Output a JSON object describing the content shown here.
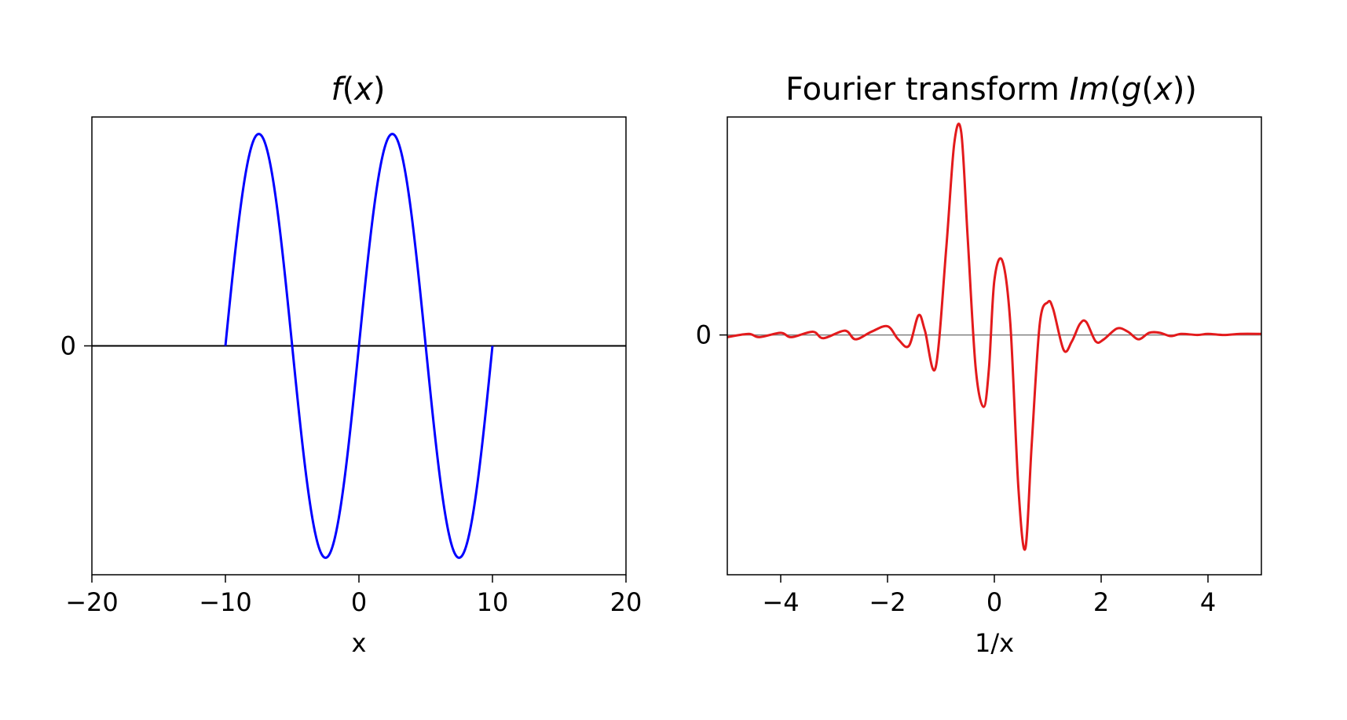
{
  "chart_data": [
    {
      "type": "line",
      "title": {
        "func": "f",
        "open": "(",
        "var": "x",
        "close": ")"
      },
      "xlabel": "x",
      "ylabel": "",
      "xlim": [
        -20,
        20
      ],
      "ylim": [
        -1.08,
        1.08
      ],
      "xticks": [
        -20,
        -10,
        0,
        10,
        20
      ],
      "xtick_labels": [
        "−20",
        "−10",
        "0",
        "10",
        "20"
      ],
      "yticks": [
        0
      ],
      "ytick_labels": [
        "0"
      ],
      "grid": false,
      "legend": "none",
      "zero_line": {
        "y": 0,
        "color": "#000000"
      },
      "series": [
        {
          "color": "#0000ff",
          "function": "sin(2*pi*x/10)",
          "x_range": [
            -10,
            10
          ],
          "x": [
            -10,
            -9,
            -8,
            -7.5,
            -7,
            -6,
            -5,
            -4,
            -3,
            -2.5,
            -2,
            -1,
            0,
            1,
            2,
            2.5,
            3,
            4,
            5,
            6,
            7,
            7.5,
            8,
            9,
            10
          ],
          "y": [
            0,
            0.59,
            0.95,
            1,
            0.95,
            0.59,
            0,
            -0.59,
            -0.95,
            -1,
            -0.95,
            -0.59,
            0,
            0.59,
            0.95,
            1,
            0.95,
            0.59,
            0,
            -0.59,
            -0.95,
            -1,
            -0.95,
            -0.59,
            0
          ]
        }
      ]
    },
    {
      "type": "line",
      "title": {
        "prefix": "Fourier transform ",
        "im": "Im",
        "open1": "(",
        "g": "g",
        "open2": "(",
        "var": "x",
        "close": "))"
      },
      "xlabel": "1/x",
      "ylabel": "",
      "xlim": [
        -5,
        5
      ],
      "ylim": [
        -1.1,
        1.0
      ],
      "xticks": [
        -4,
        -2,
        0,
        2,
        4
      ],
      "xtick_labels": [
        "−4",
        "−2",
        "0",
        "2",
        "4"
      ],
      "yticks": [
        0
      ],
      "ytick_labels": [
        "0"
      ],
      "grid": false,
      "legend": "none",
      "zero_line": {
        "y": 0,
        "color": "#808080"
      },
      "series": [
        {
          "color": "#e31a1c",
          "x": [
            -5.0,
            -4.6,
            -4.4,
            -4.0,
            -3.8,
            -3.4,
            -3.2,
            -2.8,
            -2.6,
            -2.3,
            -2.0,
            -1.8,
            -1.6,
            -1.42,
            -1.3,
            -1.1,
            -0.9,
            -0.75,
            -0.62,
            -0.5,
            -0.35,
            -0.2,
            -0.1,
            0.0,
            0.15,
            0.3,
            0.45,
            0.58,
            0.7,
            0.85,
            1.0,
            1.1,
            1.3,
            1.45,
            1.6,
            1.72,
            1.9,
            2.05,
            2.3,
            2.5,
            2.7,
            2.9,
            3.1,
            3.3,
            3.5,
            3.8,
            4.0,
            4.3,
            4.6,
            5.0
          ],
          "y": [
            -0.01,
            0.005,
            -0.01,
            0.01,
            -0.01,
            0.015,
            -0.015,
            0.02,
            -0.02,
            0.015,
            0.04,
            -0.02,
            -0.05,
            0.09,
            0.02,
            -0.15,
            0.4,
            0.88,
            0.93,
            0.45,
            -0.15,
            -0.33,
            -0.15,
            0.25,
            0.34,
            0.05,
            -0.7,
            -0.98,
            -0.5,
            0.05,
            0.15,
            0.12,
            -0.07,
            -0.03,
            0.05,
            0.06,
            -0.03,
            -0.02,
            0.03,
            0.015,
            -0.02,
            0.01,
            0.01,
            -0.005,
            0.005,
            0.0,
            0.005,
            0.0,
            0.005,
            0.005
          ]
        }
      ]
    }
  ]
}
